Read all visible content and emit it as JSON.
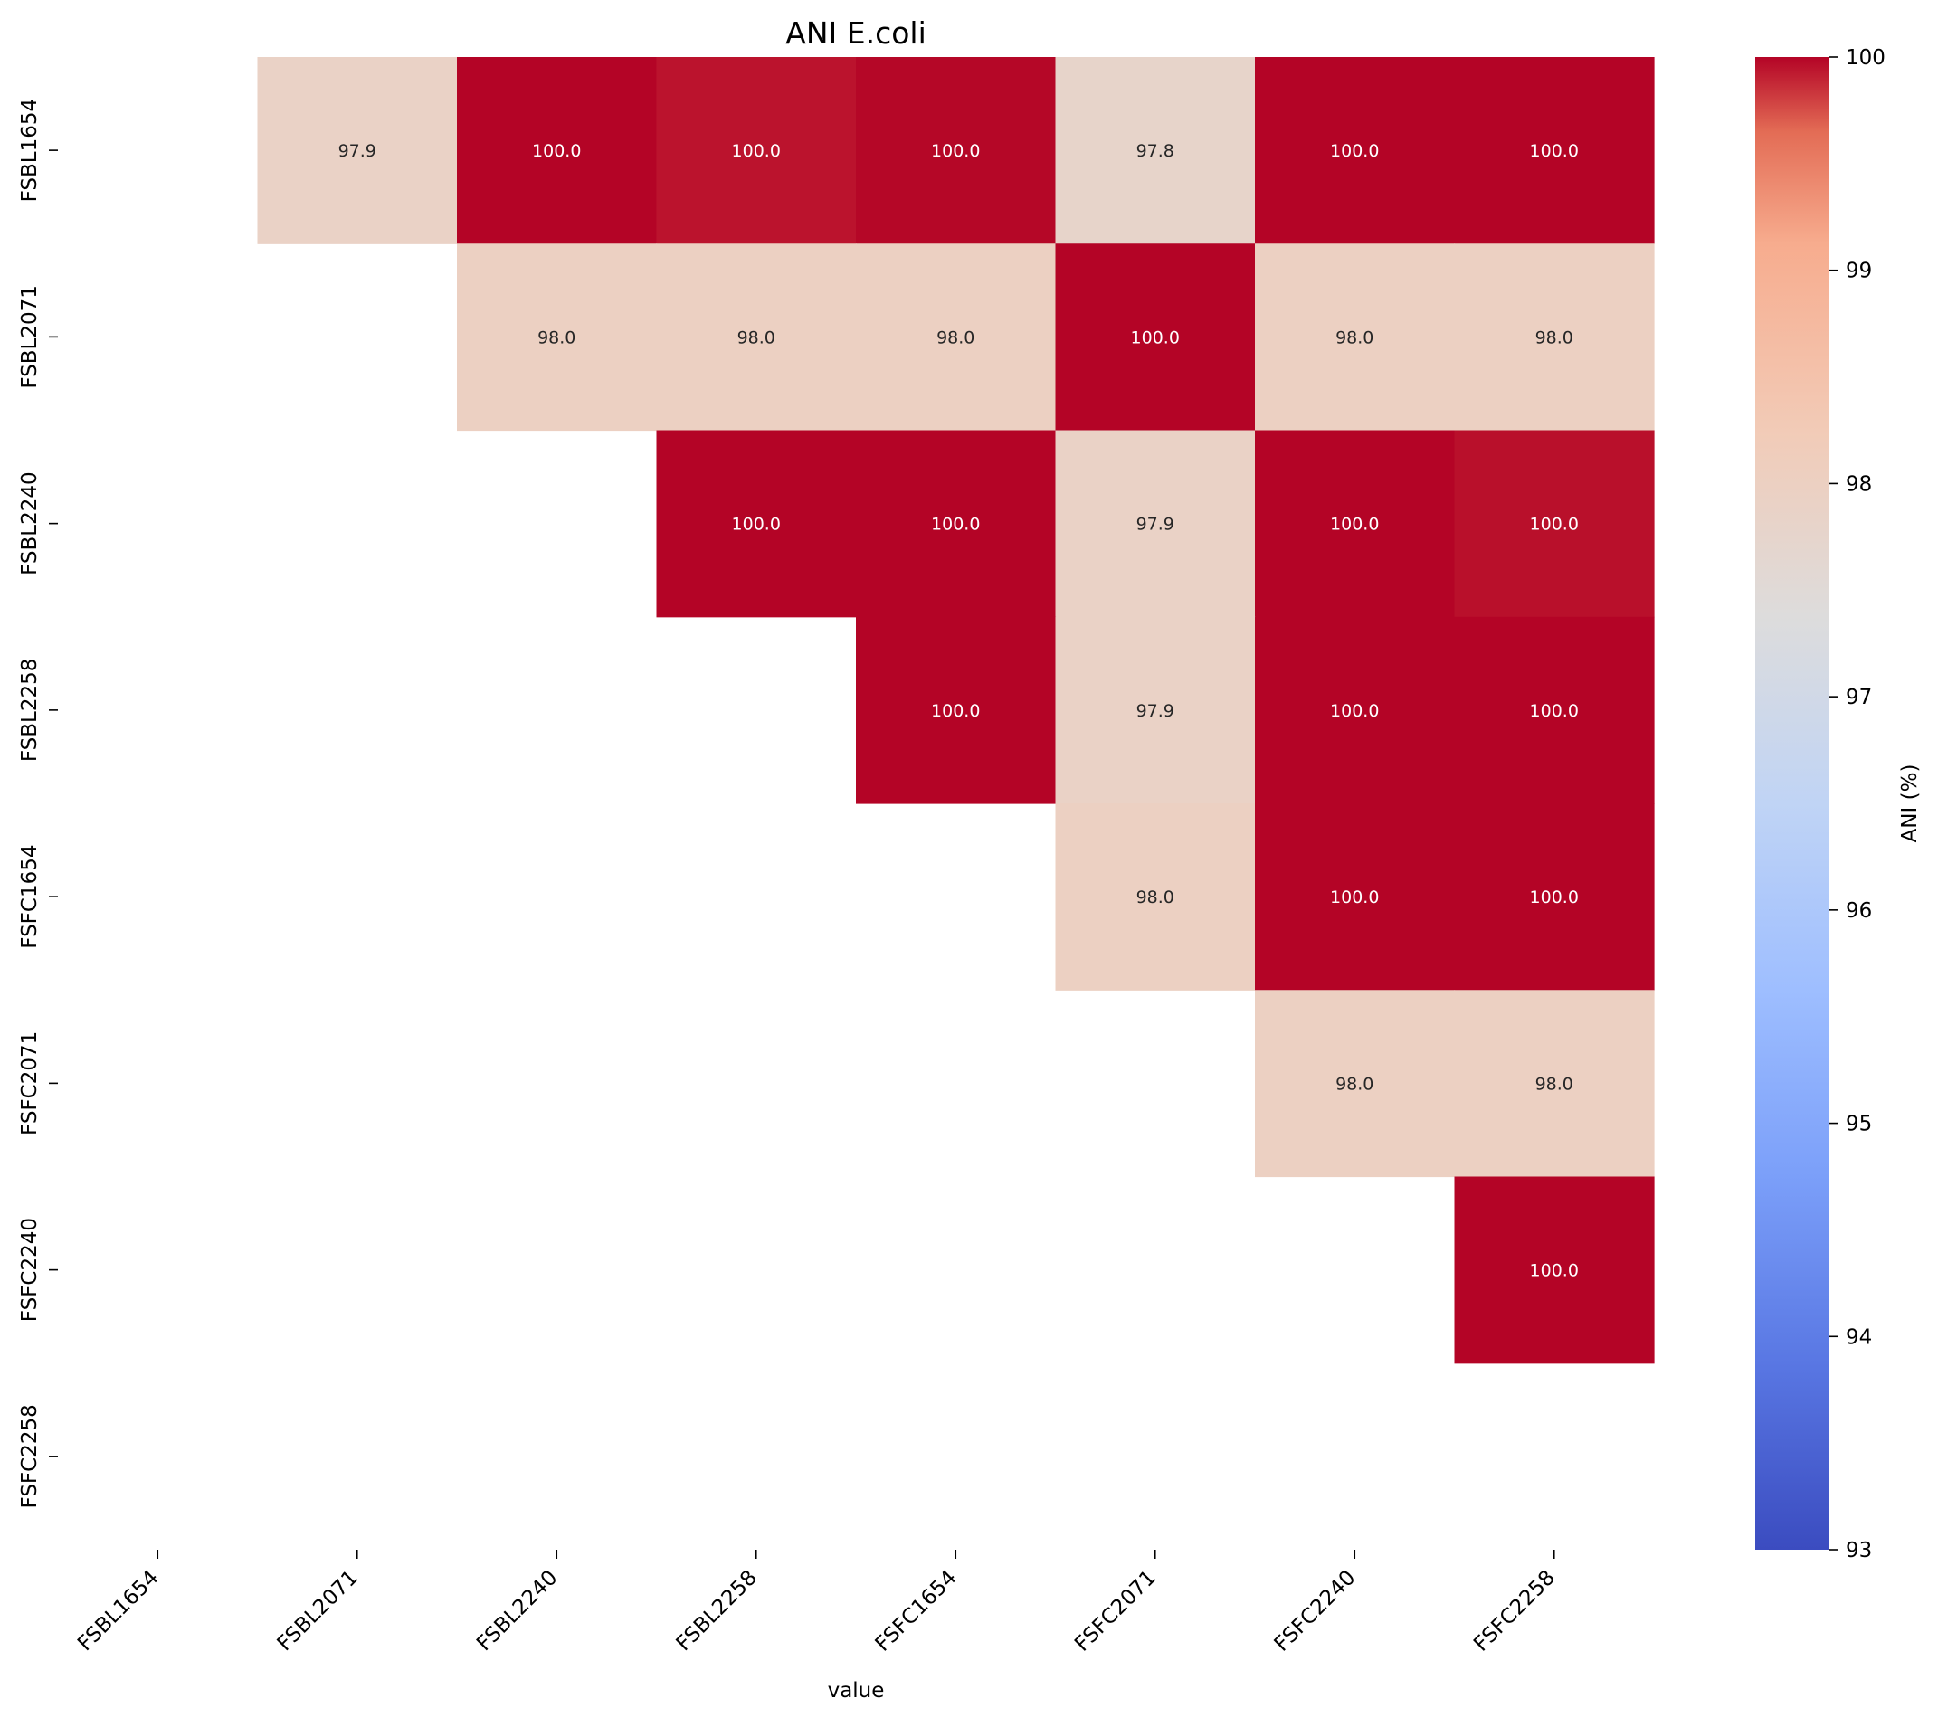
{
  "chart_data": {
    "type": "heatmap",
    "title": "ANI E.coli",
    "xlabel": "value",
    "ylabel": "",
    "colorbar_label": "ANI (%)",
    "colormap": "coolwarm",
    "vmin": 93,
    "vmax": 100,
    "colorbar_ticks": [
      "93",
      "94",
      "95",
      "96",
      "97",
      "98",
      "99",
      "100"
    ],
    "x_categories": [
      "FSBL1654",
      "FSBL2071",
      "FSBL2240",
      "FSBL2258",
      "FSFC1654",
      "FSFC2071",
      "FSFC2240",
      "FSFC2258"
    ],
    "y_categories": [
      "FSBL1654",
      "FSBL2071",
      "FSBL2240",
      "FSBL2258",
      "FSFC1654",
      "FSFC2071",
      "FSFC2240",
      "FSFC2258"
    ],
    "values": [
      [
        null,
        97.9,
        100.0,
        99.95,
        99.99,
        97.8,
        100.0,
        100.0
      ],
      [
        null,
        null,
        98.0,
        98.0,
        98.0,
        100.0,
        98.0,
        98.0
      ],
      [
        null,
        null,
        null,
        100.0,
        100.0,
        97.9,
        100.0,
        99.96
      ],
      [
        null,
        null,
        null,
        null,
        100.0,
        97.9,
        100.0,
        100.0
      ],
      [
        null,
        null,
        null,
        null,
        null,
        98.0,
        100.0,
        100.0
      ],
      [
        null,
        null,
        null,
        null,
        null,
        null,
        98.0,
        98.0
      ],
      [
        null,
        null,
        null,
        null,
        null,
        null,
        null,
        100.0
      ],
      [
        null,
        null,
        null,
        null,
        null,
        null,
        null,
        null
      ]
    ],
    "value_format": "0.0",
    "annotated": true,
    "masked": "lower-triangle-and-diagonal"
  }
}
